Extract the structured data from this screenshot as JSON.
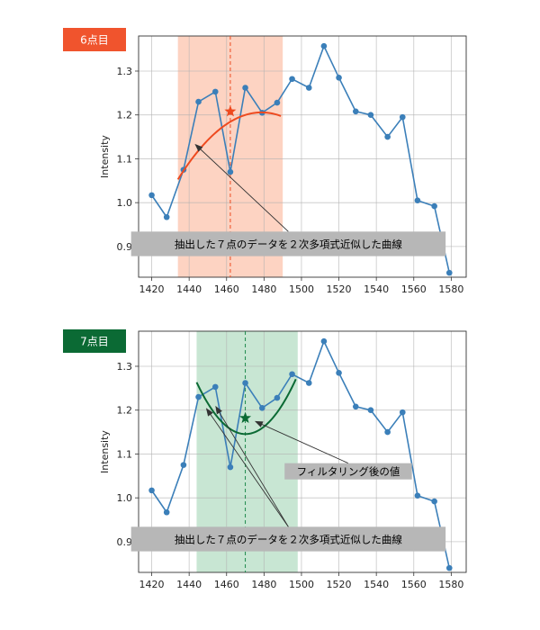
{
  "chart_data": [
    {
      "type": "line",
      "badge": "6点目",
      "ylabel": "Intensity",
      "xlim": [
        1413,
        1588
      ],
      "ylim": [
        0.83,
        1.38
      ],
      "xticks": [
        1420,
        1440,
        1460,
        1480,
        1500,
        1520,
        1540,
        1560,
        1580
      ],
      "yticks": [
        0.9,
        1.0,
        1.1,
        1.2,
        1.3
      ],
      "grid": true,
      "x": [
        1420,
        1428,
        1437,
        1445,
        1454,
        1462,
        1470,
        1479,
        1487,
        1495,
        1504,
        1512,
        1520,
        1529,
        1537,
        1546,
        1554,
        1562,
        1571,
        1579
      ],
      "y": [
        1.017,
        0.967,
        1.075,
        1.23,
        1.253,
        1.07,
        1.262,
        1.205,
        1.228,
        1.282,
        1.262,
        1.357,
        1.285,
        1.208,
        1.2,
        1.15,
        1.195,
        1.005,
        0.992,
        0.84
      ],
      "window": [
        1434,
        1490
      ],
      "center_x": 1462,
      "fit_x": [
        1434,
        1489
      ],
      "fit_coef": [
        -7.65e-05,
        0.22624,
        -166.064
      ],
      "filtered_point": [
        1462,
        1.208
      ],
      "annotations": [
        {
          "text": "抽出した７点のデータを２次多項式近似した曲線",
          "box_x": [
            1409,
            1577
          ],
          "box_y": [
            0.878,
            0.934
          ],
          "targets": [
            [
              1443,
              1.134
            ]
          ]
        }
      ],
      "colors": {
        "series": "#3b7fb9",
        "fit": "#ee4a1f",
        "window": "#fdd3c2",
        "badge": "#f0542d",
        "center": "#ee4a1f",
        "annot_box": "#b7b7b7"
      }
    },
    {
      "type": "line",
      "badge": "7点目",
      "ylabel": "Intensity",
      "xlim": [
        1413,
        1588
      ],
      "ylim": [
        0.83,
        1.38
      ],
      "xticks": [
        1420,
        1440,
        1460,
        1480,
        1500,
        1520,
        1540,
        1560,
        1580
      ],
      "yticks": [
        0.9,
        1.0,
        1.1,
        1.2,
        1.3
      ],
      "grid": true,
      "x": [
        1420,
        1428,
        1437,
        1445,
        1454,
        1462,
        1470,
        1479,
        1487,
        1495,
        1504,
        1512,
        1520,
        1529,
        1537,
        1546,
        1554,
        1562,
        1571,
        1579
      ],
      "y": [
        1.017,
        0.967,
        1.075,
        1.23,
        1.253,
        1.07,
        1.262,
        1.205,
        1.228,
        1.282,
        1.262,
        1.357,
        1.285,
        1.208,
        1.2,
        1.15,
        1.195,
        1.005,
        0.992,
        0.84
      ],
      "window": [
        1444,
        1498
      ],
      "center_x": 1470,
      "fit_x": [
        1444,
        1497
      ],
      "fit_coef": [
        0.000173,
        -0.50866,
        375.04
      ],
      "filtered_point": [
        1470,
        1.182
      ],
      "annotations": [
        {
          "text": "フィルタリング後の値",
          "box_x": [
            1491,
            1559
          ],
          "box_y": [
            1.042,
            1.079
          ],
          "targets": [
            [
              1475,
              1.175
            ]
          ]
        },
        {
          "text": "抽出した７点のデータを２次多項式近似した曲線",
          "box_x": [
            1409,
            1577
          ],
          "box_y": [
            0.878,
            0.934
          ],
          "targets": [
            [
              1449,
              1.205
            ],
            [
              1454,
              1.21
            ]
          ]
        }
      ],
      "colors": {
        "series": "#3b7fb9",
        "fit": "#0b6a34",
        "window": "#c8e6d3",
        "badge": "#0b6a34",
        "center": "#1f8a4d",
        "annot_box": "#b7b7b7"
      }
    }
  ]
}
